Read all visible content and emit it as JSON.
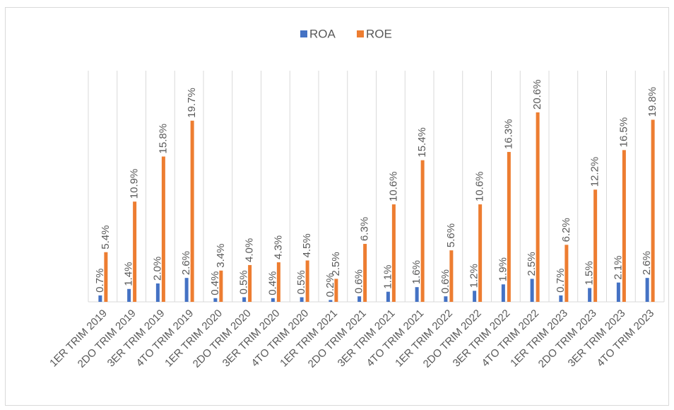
{
  "chart_data": {
    "type": "bar",
    "categories": [
      "1ER TRIM 2019",
      "2DO TRIM 2019",
      "3ER TRIM 2019",
      "4TO TRIM 2019",
      "1ER TRIM 2020",
      "2DO TRIM 2020",
      "3ER TRIM 2020",
      "4TO TRIM 2020",
      "1ER TRIM 2021",
      "2DO TRIM 2021",
      "3ER TRIM 2021",
      "4TO TRIM 2021",
      "1ER TRIM 2022",
      "2DO TRIM 2022",
      "3ER TRIM 2022",
      "4TO TRIM 2022",
      "1ER TRIM 2023",
      "2DO TRIM 2023",
      "3ER TRIM 2023",
      "4TO TRIM 2023"
    ],
    "series": [
      {
        "name": "ROA",
        "color": "#4472c4",
        "values": [
          0.7,
          1.4,
          2.0,
          2.6,
          0.4,
          0.5,
          0.4,
          0.5,
          0.2,
          0.6,
          1.1,
          1.6,
          0.6,
          1.2,
          1.9,
          2.5,
          0.7,
          1.5,
          2.1,
          2.6
        ],
        "value_labels": [
          "0.7%",
          "1.4%",
          "2.0%",
          "2.6%",
          "0.4%",
          "0.5%",
          "0.4%",
          "0.5%",
          "0.2%",
          "0.6%",
          "1.1%",
          "1.6%",
          "0.6%",
          "1.2%",
          "1.9%",
          "2.5%",
          "0.7%",
          "1.5%",
          "2.1%",
          "2.6%"
        ]
      },
      {
        "name": "ROE",
        "color": "#ed7d31",
        "values": [
          5.4,
          10.9,
          15.8,
          19.7,
          3.4,
          4.0,
          4.3,
          4.5,
          2.5,
          6.3,
          10.6,
          15.4,
          5.6,
          10.6,
          16.3,
          20.6,
          6.2,
          12.2,
          16.5,
          19.8
        ],
        "value_labels": [
          "5.4%",
          "10.9%",
          "15.8%",
          "19.7%",
          "3.4%",
          "4.0%",
          "4.3%",
          "4.5%",
          "2.5%",
          "6.3%",
          "10.6%",
          "15.4%",
          "5.6%",
          "10.6%",
          "16.3%",
          "20.6%",
          "6.2%",
          "12.2%",
          "16.5%",
          "19.8%"
        ]
      }
    ],
    "grid": true,
    "legend": "top"
  }
}
